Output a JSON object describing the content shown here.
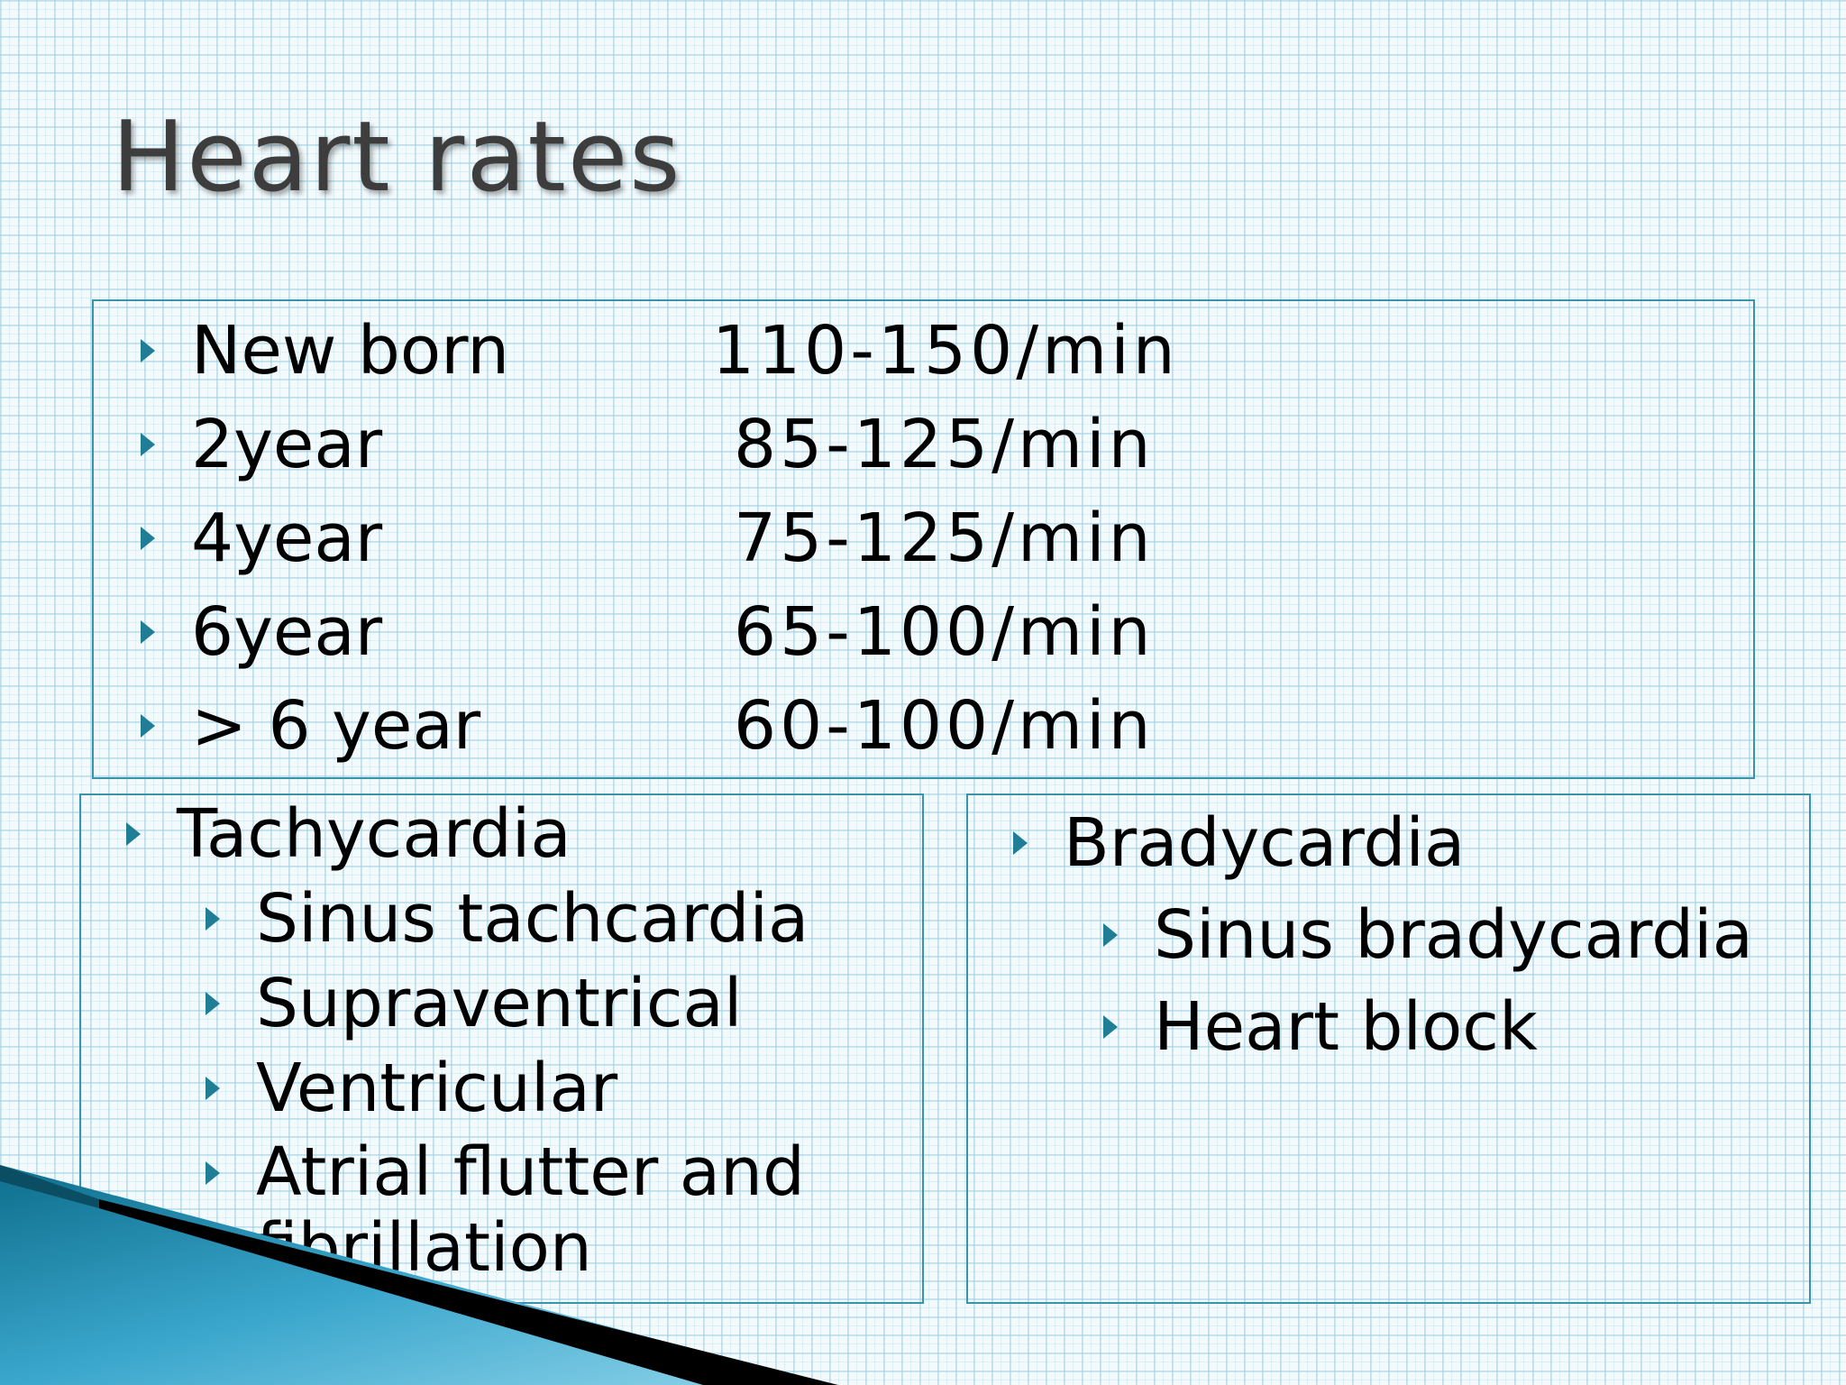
{
  "title": "Heart rates",
  "rates": [
    {
      "age": "New born",
      "rate": "110-150/min"
    },
    {
      "age": "2year",
      "rate": "85-125/min"
    },
    {
      "age": "4year",
      "rate": "75-125/min"
    },
    {
      "age": "6year",
      "rate": "65-100/min"
    },
    {
      "age": "> 6 year",
      "rate": "60-100/min"
    }
  ],
  "tachycardia": {
    "heading": "Tachycardia",
    "items": [
      "Sinus tachcardia",
      "Supraventrical",
      "Ventricular",
      "Atrial flutter and fibrillation"
    ]
  },
  "bradycardia": {
    "heading": "Bradycardia",
    "items": [
      "Sinus bradycardia",
      "Heart block"
    ]
  },
  "colors": {
    "accent": "#1f7d95",
    "border": "#3a93a8",
    "title": "#3d3d3d"
  }
}
